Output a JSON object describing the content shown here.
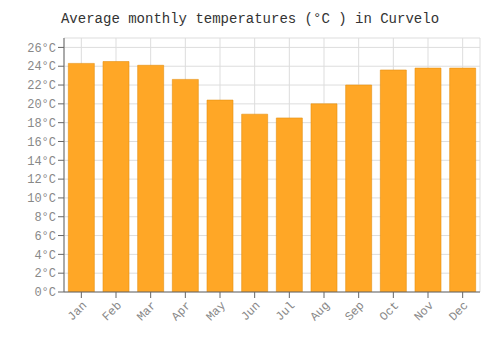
{
  "chart_data": {
    "type": "bar",
    "title": "Average monthly temperatures (°C ) in Curvelo",
    "categories": [
      "Jan",
      "Feb",
      "Mar",
      "Apr",
      "May",
      "Jun",
      "Jul",
      "Aug",
      "Sep",
      "Oct",
      "Nov",
      "Dec"
    ],
    "values": [
      24.3,
      24.5,
      24.1,
      22.6,
      20.4,
      18.9,
      18.5,
      20.0,
      22.0,
      23.6,
      23.8,
      23.8
    ],
    "color": "#FFA726",
    "ylim": [
      0,
      27
    ],
    "yticks": [
      {
        "value": 0,
        "label": "0°C"
      },
      {
        "value": 2,
        "label": "2°C"
      },
      {
        "value": 4,
        "label": "4°C"
      },
      {
        "value": 6,
        "label": "6°C"
      },
      {
        "value": 8,
        "label": "8°C"
      },
      {
        "value": 10,
        "label": "10°C"
      },
      {
        "value": 12,
        "label": "12°C"
      },
      {
        "value": 14,
        "label": "14°C"
      },
      {
        "value": 16,
        "label": "16°C"
      },
      {
        "value": 18,
        "label": "18°C"
      },
      {
        "value": 20,
        "label": "20°C"
      },
      {
        "value": 22,
        "label": "22°C"
      },
      {
        "value": 24,
        "label": "24°C"
      },
      {
        "value": 26,
        "label": "26°C"
      }
    ],
    "grid": true
  }
}
